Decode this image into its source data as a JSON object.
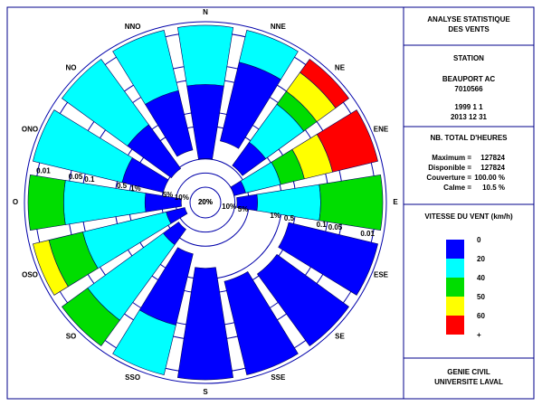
{
  "chart_data": {
    "type": "windrose",
    "directions": [
      "N",
      "NNE",
      "NE",
      "ENE",
      "E",
      "ESE",
      "SE",
      "SSE",
      "S",
      "SSO",
      "SO",
      "OSO",
      "O",
      "ONO",
      "NO",
      "NNO"
    ],
    "rscale": "log",
    "rlim": [
      20,
      0.006
    ],
    "rticks": [
      0.01,
      0.05,
      0.1,
      0.5,
      {
        "value": 1,
        "label": "1%"
      },
      {
        "value": 5,
        "label": "5%"
      },
      {
        "value": 10,
        "label": "10%"
      },
      {
        "value": 20,
        "label": "20%"
      }
    ],
    "legend_title": "VITESSE DU VENT (km/h)",
    "legend_end_label": "+",
    "series": [
      {
        "name": "0",
        "color": "#0000ff",
        "values": [
          4.9,
          1.9,
          4.5,
          10,
          9,
          0.64,
          0.56,
          0.8,
          1.7,
          3.2,
          8.4,
          15,
          13,
          5.1,
          5.4,
          3.0
        ]
      },
      {
        "name": "20",
        "color": "#00ffff",
        "values": [
          0.13,
          0.036,
          1.1,
          5.6,
          3.3,
          null,
          null,
          null,
          null,
          0.088,
          3.3,
          5.9,
          2.2,
          0.64,
          0.38,
          0.15
        ]
      },
      {
        "name": "40",
        "color": "#00dd00",
        "values": [
          null,
          null,
          0.11,
          0.96,
          0.15,
          null,
          null,
          null,
          null,
          null,
          0.034,
          0.088,
          0.041,
          null,
          null,
          null
        ]
      },
      {
        "name": "50",
        "color": "#ffff00",
        "values": [
          null,
          null,
          0.05,
          0.29,
          null,
          null,
          null,
          null,
          null,
          null,
          null,
          0.016,
          null,
          null,
          null,
          null
        ]
      },
      {
        "name": "60",
        "color": "#ff0000",
        "values": [
          null,
          null,
          0.016,
          0.07,
          null,
          null,
          null,
          null,
          null,
          null,
          null,
          null,
          null,
          null,
          null,
          null
        ]
      }
    ]
  },
  "header": {
    "lines": [
      "ANALYSE STATISTIQUE",
      "DES VENTS"
    ]
  },
  "station": {
    "title": "STATION",
    "name": "BEAUPORT AC",
    "id": "7010566",
    "start": "1999  1  1",
    "end": "2013 12 31"
  },
  "hours": {
    "title": "NB. TOTAL D'HEURES",
    "rows": [
      {
        "label": "Maximum =",
        "value": "127824"
      },
      {
        "label": "Disponible =",
        "value": "127824"
      },
      {
        "label": "Couverture =",
        "value": "100.00 %"
      },
      {
        "label": "Calme =",
        "value": "10.5 %"
      }
    ]
  },
  "footer": {
    "lines": [
      "GENIE CIVIL",
      "UNIVERSITE LAVAL"
    ]
  }
}
